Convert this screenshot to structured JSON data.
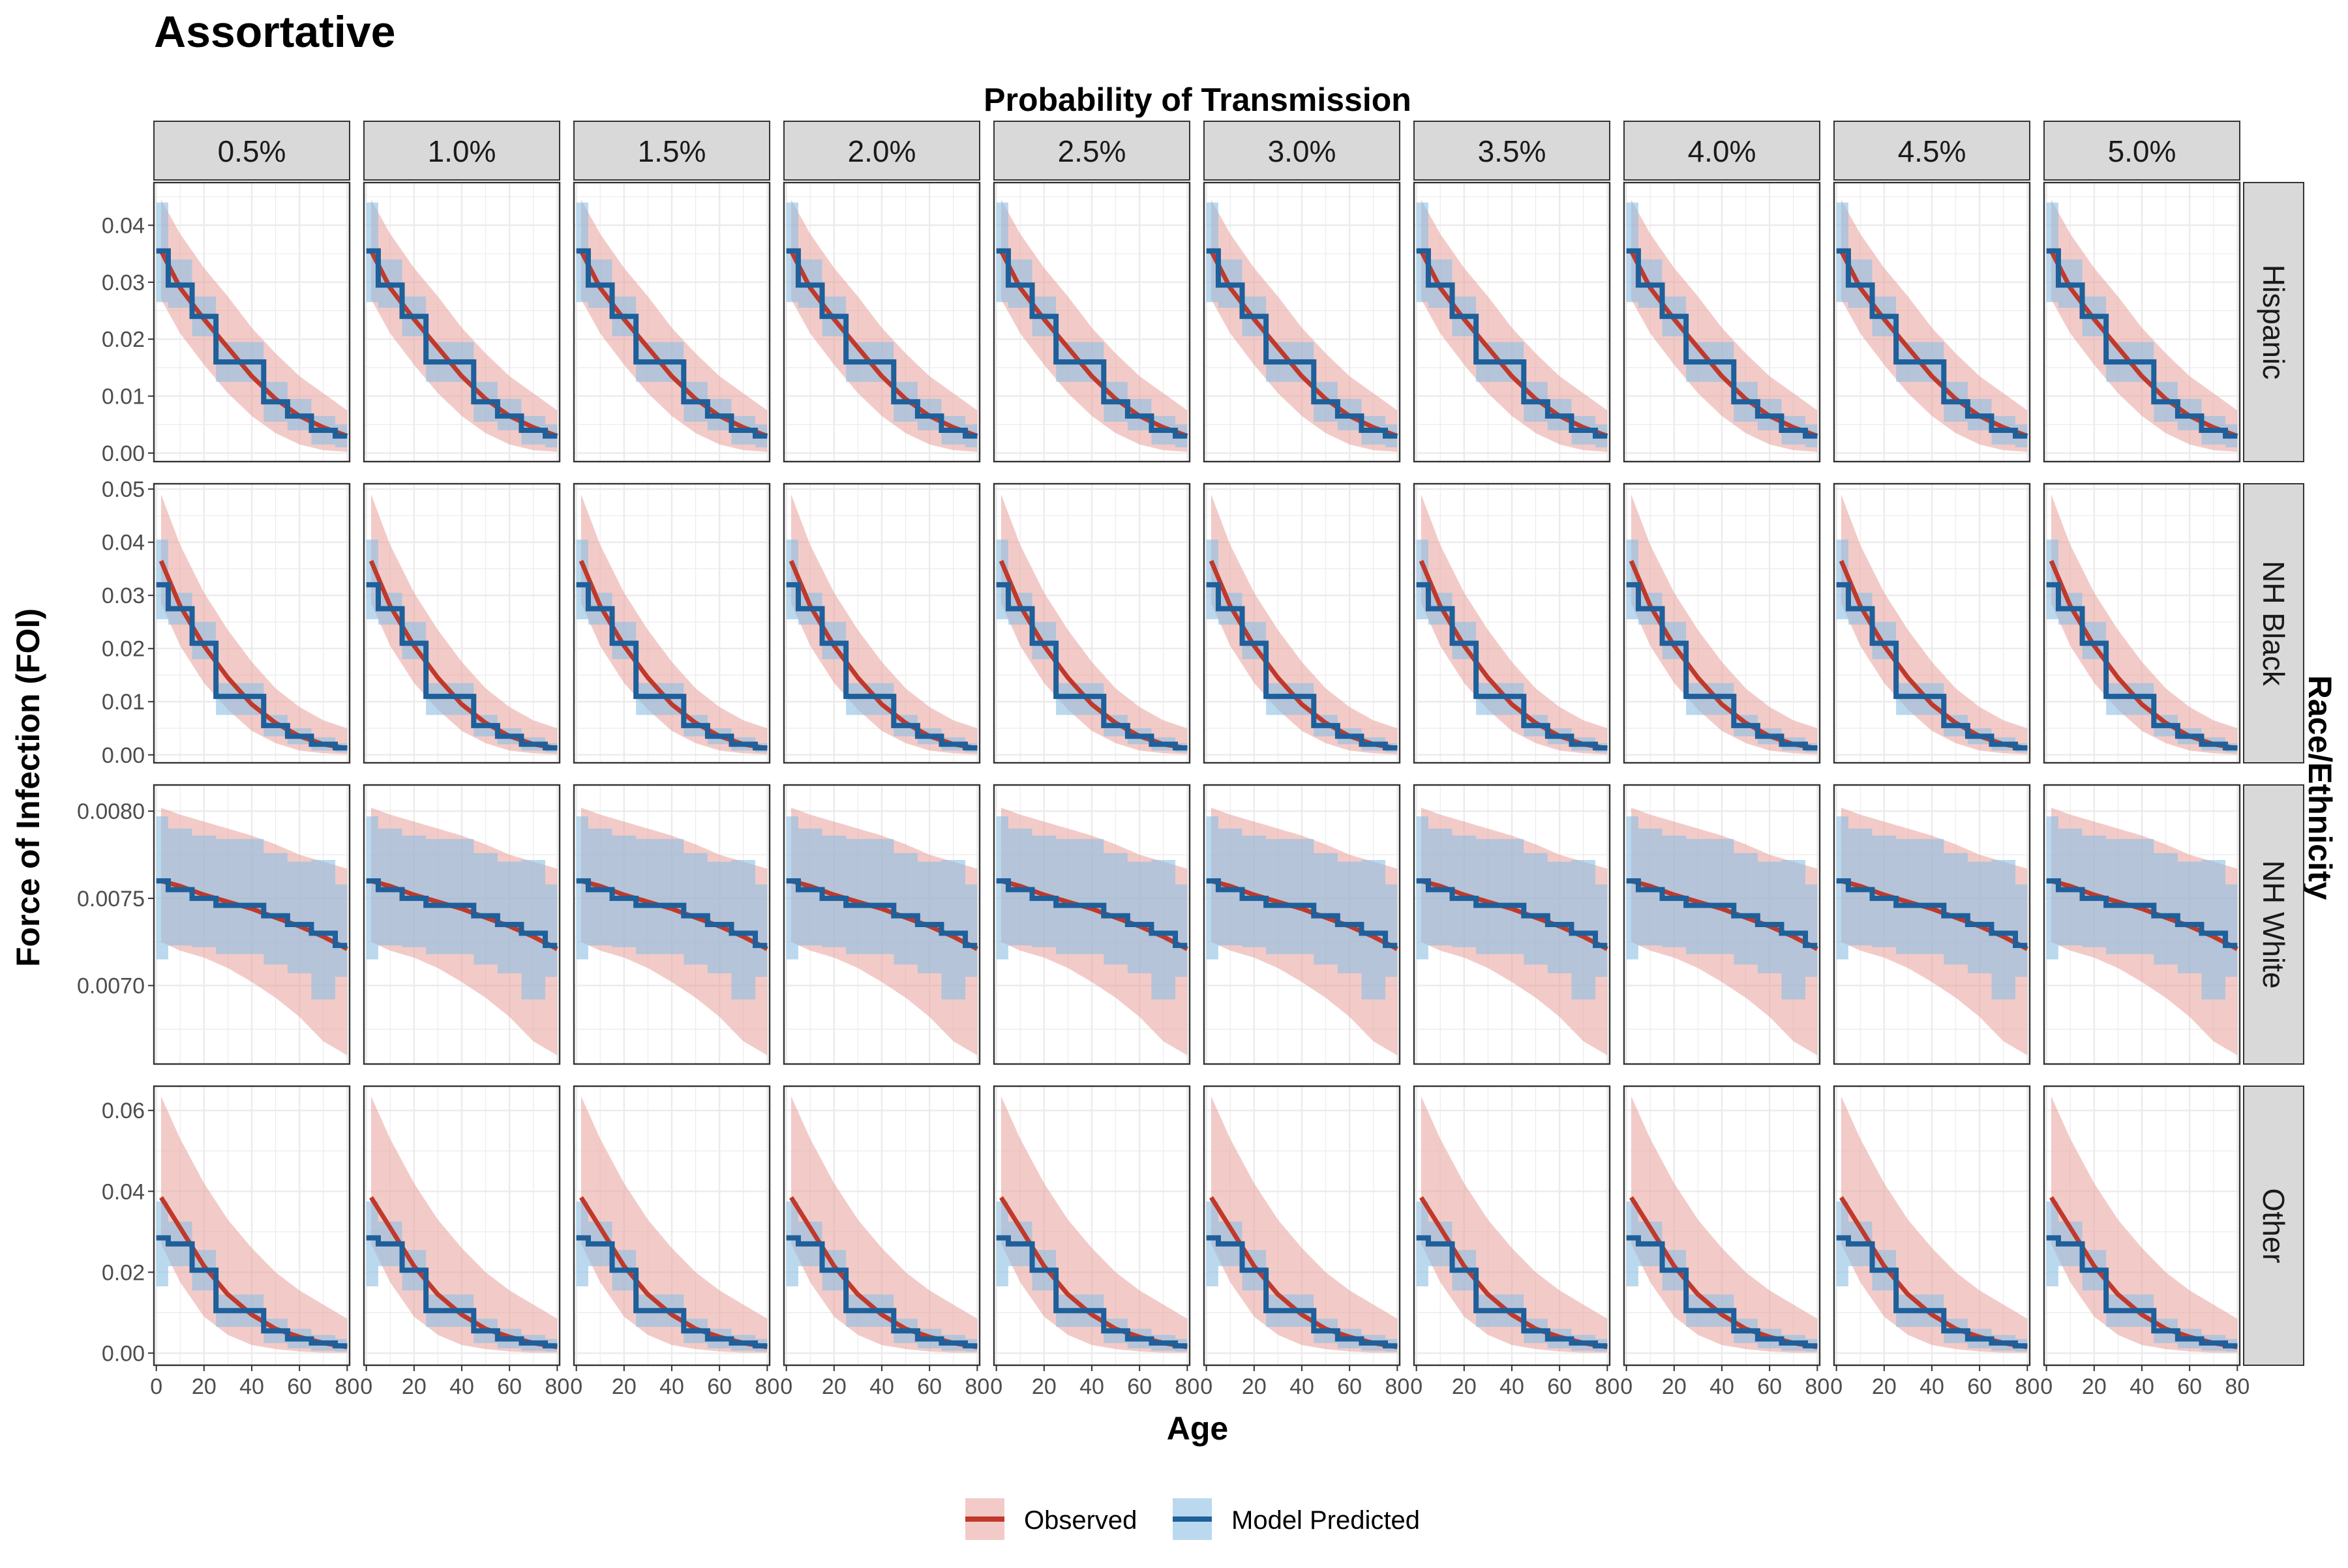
{
  "title": "Assortative",
  "col_facet_title": "Probability of Transmission",
  "row_facet_title": "Race/Ethnicity",
  "xlabel": "Age",
  "ylabel": "Force of Infection (FOI)",
  "colors": {
    "observed_line": "#c0392b",
    "observed_band": "#e8a09a",
    "predicted_line": "#1f5f9a",
    "predicted_band": "#8cc0e4",
    "strip_fill": "#d9d9d9",
    "grid": "#ebebeb"
  },
  "chart_data": {
    "type": "line",
    "facets": {
      "columns": [
        "0.5%",
        "1.0%",
        "1.5%",
        "2.0%",
        "2.5%",
        "3.0%",
        "3.5%",
        "4.0%",
        "4.5%",
        "5.0%"
      ],
      "rows": [
        "Hispanic",
        "NH Black",
        "NH White",
        "Other"
      ]
    },
    "x_axis": {
      "range": [
        -1,
        81
      ],
      "ticks": [
        0,
        20,
        40,
        60,
        80
      ],
      "tick_labels": [
        "0",
        "20",
        "40",
        "60",
        "80"
      ]
    },
    "grid": true,
    "legend": {
      "position": "bottom",
      "entries": [
        {
          "key": "observed",
          "label": "Observed"
        },
        {
          "key": "predicted",
          "label": "Model Predicted"
        }
      ]
    },
    "age_groups": [
      {
        "start": 0,
        "end": 5
      },
      {
        "start": 5,
        "end": 15
      },
      {
        "start": 15,
        "end": 25
      },
      {
        "start": 25,
        "end": 45
      },
      {
        "start": 45,
        "end": 55
      },
      {
        "start": 55,
        "end": 65
      },
      {
        "start": 65,
        "end": 75
      },
      {
        "start": 75,
        "end": 80
      }
    ],
    "panels": [
      {
        "row": "Hispanic",
        "ylim": [
          -0.0015,
          0.0475
        ],
        "y_ticks": [
          0.0,
          0.01,
          0.02,
          0.03,
          0.04
        ],
        "y_tick_labels": [
          "0.00",
          "0.01",
          "0.02",
          "0.03",
          "0.04"
        ],
        "observed": {
          "x": [
            2,
            10,
            20,
            30,
            40,
            50,
            60,
            70,
            80
          ],
          "y": [
            0.0355,
            0.029,
            0.0235,
            0.0185,
            0.0135,
            0.0095,
            0.0065,
            0.0045,
            0.003
          ],
          "lower": [
            0.027,
            0.021,
            0.0155,
            0.0105,
            0.0065,
            0.0035,
            0.0015,
            0.0005,
            0.0002
          ],
          "upper": [
            0.0445,
            0.0385,
            0.0325,
            0.0275,
            0.022,
            0.0175,
            0.0135,
            0.0105,
            0.0075
          ]
        },
        "predicted": {
          "y": [
            0.0355,
            0.0295,
            0.024,
            0.016,
            0.009,
            0.0065,
            0.004,
            0.003
          ],
          "lower": [
            0.0265,
            0.0255,
            0.0205,
            0.0125,
            0.0055,
            0.004,
            0.0015,
            0.001
          ],
          "upper": [
            0.044,
            0.034,
            0.0275,
            0.0195,
            0.0125,
            0.0095,
            0.0065,
            0.005
          ]
        }
      },
      {
        "row": "NH Black",
        "ylim": [
          -0.0015,
          0.051
        ],
        "y_ticks": [
          0.0,
          0.01,
          0.02,
          0.03,
          0.04,
          0.05
        ],
        "y_tick_labels": [
          "0.00",
          "0.01",
          "0.02",
          "0.03",
          "0.04",
          "0.05"
        ],
        "observed": {
          "x": [
            2,
            10,
            20,
            30,
            40,
            50,
            60,
            70,
            80
          ],
          "y": [
            0.0365,
            0.028,
            0.0205,
            0.0145,
            0.0095,
            0.006,
            0.0035,
            0.002,
            0.0012
          ],
          "lower": [
            0.0285,
            0.0205,
            0.0135,
            0.0085,
            0.0045,
            0.0022,
            0.0008,
            0.0003,
            0.0001
          ],
          "upper": [
            0.049,
            0.0395,
            0.0305,
            0.0235,
            0.0175,
            0.0125,
            0.009,
            0.0065,
            0.005
          ]
        },
        "predicted": {
          "y": [
            0.032,
            0.0275,
            0.021,
            0.011,
            0.0055,
            0.0035,
            0.002,
            0.0013
          ],
          "lower": [
            0.0255,
            0.0245,
            0.018,
            0.0075,
            0.0035,
            0.002,
            0.0008,
            0.0005
          ],
          "upper": [
            0.0405,
            0.0305,
            0.025,
            0.0135,
            0.0075,
            0.005,
            0.0033,
            0.0022
          ]
        }
      },
      {
        "row": "NH White",
        "ylim": [
          0.00655,
          0.00815
        ],
        "y_ticks": [
          0.007,
          0.0075,
          0.008
        ],
        "y_tick_labels": [
          "0.0070",
          "0.0075",
          "0.0080"
        ],
        "observed": {
          "x": [
            2,
            10,
            20,
            30,
            40,
            50,
            60,
            70,
            80
          ],
          "y": [
            0.0076,
            0.00757,
            0.00752,
            0.00748,
            0.00744,
            0.00739,
            0.00734,
            0.00728,
            0.00721
          ],
          "lower": [
            0.00725,
            0.0072,
            0.00716,
            0.0071,
            0.00702,
            0.00693,
            0.00682,
            0.00668,
            0.0066
          ],
          "upper": [
            0.00802,
            0.00798,
            0.00794,
            0.0079,
            0.00786,
            0.00781,
            0.00775,
            0.00771,
            0.00767
          ]
        },
        "predicted": {
          "y": [
            0.0076,
            0.00755,
            0.0075,
            0.00746,
            0.0074,
            0.00735,
            0.0073,
            0.00723
          ],
          "lower": [
            0.00715,
            0.00723,
            0.00722,
            0.00718,
            0.00712,
            0.00707,
            0.00692,
            0.00705
          ],
          "upper": [
            0.00797,
            0.0079,
            0.00786,
            0.00784,
            0.00776,
            0.00771,
            0.00772,
            0.00758
          ]
        }
      },
      {
        "row": "Other",
        "ylim": [
          -0.003,
          0.066
        ],
        "y_ticks": [
          0.0,
          0.02,
          0.04,
          0.06
        ],
        "y_tick_labels": [
          "0.00",
          "0.02",
          "0.04",
          "0.06"
        ],
        "observed": {
          "x": [
            2,
            10,
            20,
            30,
            40,
            50,
            60,
            70,
            80
          ],
          "y": [
            0.0385,
            0.031,
            0.0215,
            0.0145,
            0.0095,
            0.006,
            0.004,
            0.0025,
            0.0015
          ],
          "lower": [
            0.027,
            0.0175,
            0.009,
            0.0045,
            0.002,
            0.001,
            0.0004,
            0.0001,
            0.0001
          ],
          "upper": [
            0.0635,
            0.053,
            0.042,
            0.033,
            0.026,
            0.02,
            0.0155,
            0.012,
            0.0085
          ]
        },
        "predicted": {
          "y": [
            0.0285,
            0.027,
            0.0205,
            0.0105,
            0.0055,
            0.0035,
            0.0025,
            0.0018
          ],
          "lower": [
            0.0165,
            0.0215,
            0.0155,
            0.0065,
            0.0025,
            0.0012,
            0.0006,
            0.0004
          ],
          "upper": [
            0.0375,
            0.0325,
            0.0255,
            0.0145,
            0.0085,
            0.006,
            0.0045,
            0.0035
          ]
        }
      }
    ]
  }
}
